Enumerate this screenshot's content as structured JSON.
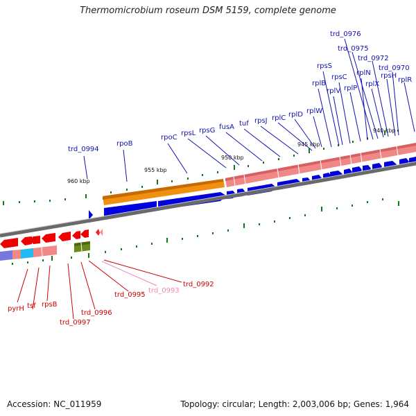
{
  "title": "Thermomicrobium roseum DSM 5159, complete genome",
  "accession": "Accession: NC_011959",
  "summary": "Topology: circular; Length: 2,003,006 bp; Genes: 1,964",
  "scale_labels": [
    "960 kbp",
    "955 kbp",
    "950 kbp",
    "945 kbp",
    "940 kbp"
  ],
  "upper_genes": [
    "trd_0994",
    "rpoB",
    "rpoC",
    "rpsL",
    "rpsG",
    "fusA",
    "tuf",
    "rpsJ",
    "rplC",
    "rplD",
    "rplW",
    "rplB",
    "rpsS",
    "rplV",
    "rpsC",
    "rplP",
    "rplN",
    "trd_0976",
    "trd_0975",
    "rplX",
    "trd_0972",
    "trd_0970",
    "rpsH",
    "rplR"
  ],
  "lower_genes": [
    "pyrH",
    "tsf",
    "rpsB",
    "trd_0997",
    "trd_0996",
    "trd_0995",
    "trd_0993",
    "trd_0992"
  ],
  "colors": {
    "label_upper": "#1010b0",
    "label_lower": "#cc0000",
    "label_pink": "#ee88bb",
    "cds_blue": "#0000dd",
    "rrna_orange": "#f09010",
    "gene_salmon": "#f08888",
    "cds_red": "#ee0000",
    "olive": "#6a8a1a",
    "cyan": "#22bbee",
    "violet": "#7777dd",
    "tick_green": "#117711",
    "backbone": "#777777"
  }
}
